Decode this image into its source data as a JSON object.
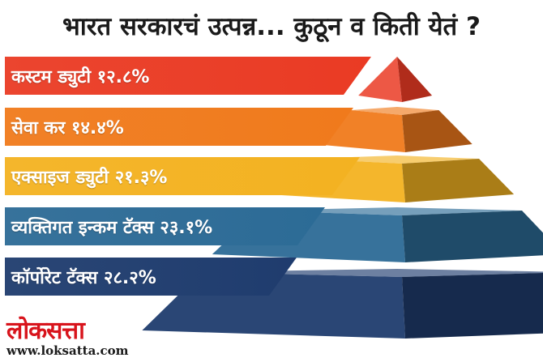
{
  "title": "भारत सरकारचं उत्पन्न... कुठून व किती येतं ?",
  "chart_data": {
    "type": "pyramid",
    "title": "भारत सरकारचं उत्पन्न... कुठून व किती येतं ?",
    "unit": "%",
    "tiers": [
      {
        "label": "कस्टम ड्युटी १२.८%",
        "name": "कस्टम ड्युटी",
        "value": 12.8,
        "color": "#ea3b24"
      },
      {
        "label": "सेवा कर १४.४%",
        "name": "सेवा कर",
        "value": 14.4,
        "color": "#f07a1c"
      },
      {
        "label": "एक्साइज ड्युटी २१.३%",
        "name": "एक्साइज ड्युटी",
        "value": 21.3,
        "color": "#f3b221"
      },
      {
        "label": "व्यक्तिगत इन्कम टॅक्स २३.१%",
        "name": "व्यक्तिगत इन्कम टॅक्स",
        "value": 23.1,
        "color": "#2c6b96"
      },
      {
        "label": "कॉर्पोरेट टॅक्स २८.२%",
        "name": "कॉर्पोरेट टॅक्स",
        "value": 28.2,
        "color": "#1f3c6e"
      }
    ]
  },
  "brand": {
    "logo_text": "लोकसत्ता",
    "website": "www.loksatta.com"
  }
}
